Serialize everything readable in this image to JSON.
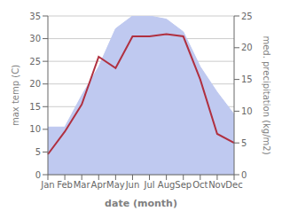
{
  "chart_data": {
    "type": "line",
    "categories": [
      "Jan",
      "Feb",
      "Mar",
      "Apr",
      "May",
      "Jun",
      "Jul",
      "Aug",
      "Sep",
      "Oct",
      "Nov",
      "Dec"
    ],
    "xlabel": "date (month)",
    "ylabel": "max temp (C)",
    "y2label": "med. precipitation (kg/m2)",
    "series": [
      {
        "type": "area",
        "axis": "y2",
        "color": "#bfc9f0",
        "values": [
          7.5,
          7.5,
          12.5,
          17.0,
          23.0,
          25.0,
          25.0,
          24.5,
          22.5,
          17.0,
          13.0,
          9.5
        ]
      },
      {
        "type": "line",
        "color": "#b03040",
        "values": [
          4.5,
          9.5,
          15.5,
          26.0,
          23.5,
          30.5,
          30.5,
          31.0,
          30.5,
          21.0,
          9.0,
          7.0
        ]
      }
    ],
    "ylim": [
      0,
      35
    ],
    "yticks": [
      0,
      5,
      10,
      15,
      20,
      25,
      30,
      35
    ],
    "y2lim": [
      0,
      25
    ],
    "y2ticks": [
      0,
      5,
      10,
      15,
      20,
      25
    ],
    "grid": true
  }
}
